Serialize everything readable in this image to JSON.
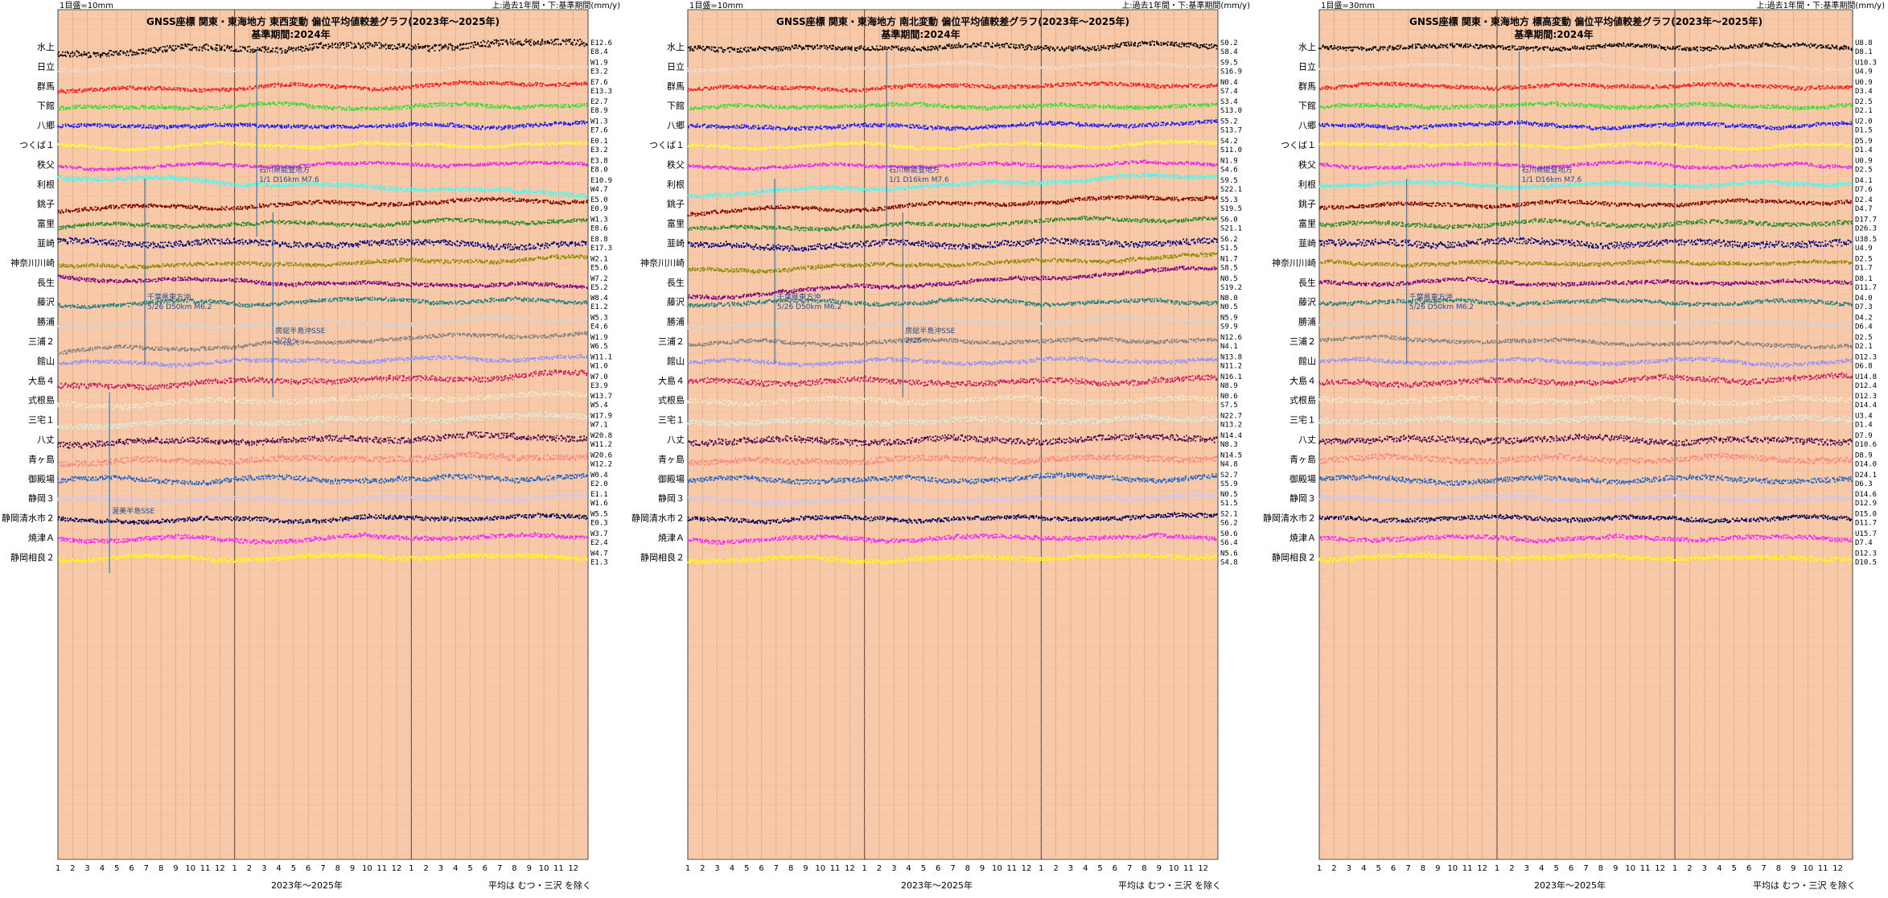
{
  "chart_data": [
    {
      "type": "scatter",
      "title": "GNSS座標 関東・東海地方 東西変動 偏位平均値較差グラフ(2023年～2025年)",
      "subtitle": "基準期間:2024年",
      "scale_label": "1目盛=10mm",
      "legend_note": "上:過去1年間・下:基準期間(mm/y)",
      "xlabel": "2023年～2025年",
      "footnote": "平均は むつ・三沢 を除く",
      "x_months": [
        "1",
        "2",
        "3",
        "4",
        "5",
        "6",
        "7",
        "8",
        "9",
        "10",
        "11",
        "12",
        "1",
        "2",
        "3",
        "4",
        "5",
        "6",
        "7",
        "8",
        "9",
        "10",
        "11",
        "12",
        "1",
        "2",
        "3",
        "4",
        "5",
        "6",
        "7",
        "8",
        "9",
        "10",
        "11",
        "12"
      ],
      "stations": [
        {
          "name": "水上",
          "color": "#000000",
          "top": "E12.6",
          "bottom": "E8.4",
          "trend": 0.35,
          "noise": 0.55
        },
        {
          "name": "日立",
          "color": "#ffe4e1",
          "top": "W1.9",
          "bottom": "E3.2",
          "trend": 0.1,
          "noise": 0.3
        },
        {
          "name": "群馬",
          "color": "#ff1a1a",
          "top": "E7.6",
          "bottom": "E13.3",
          "trend": 0.2,
          "noise": 0.3
        },
        {
          "name": "下館",
          "color": "#33dd33",
          "top": "E2.7",
          "bottom": "E8.9",
          "trend": 0.1,
          "noise": 0.3
        },
        {
          "name": "八郷",
          "color": "#1a1aff",
          "top": "W1.3",
          "bottom": "E7.6",
          "trend": 0.1,
          "noise": 0.3
        },
        {
          "name": "つくば１",
          "color": "#ffff33",
          "top": "E0.1",
          "bottom": "E3.2",
          "trend": 0.05,
          "noise": 0.25
        },
        {
          "name": "秩父",
          "color": "#ee22ee",
          "top": "E3.8",
          "bottom": "E8.0",
          "trend": 0.1,
          "noise": 0.25
        },
        {
          "name": "利根",
          "color": "#33ffff",
          "top": "E10.9",
          "bottom": "W4.7",
          "trend": -0.5,
          "noise": 0.35
        },
        {
          "name": "銚子",
          "color": "#800000",
          "top": "E5.0",
          "bottom": "E0.9",
          "trend": 0.3,
          "noise": 0.3
        },
        {
          "name": "富里",
          "color": "#228b22",
          "top": "W1.3",
          "bottom": "E8.6",
          "trend": 0.2,
          "noise": 0.3
        },
        {
          "name": "韮崎",
          "color": "#000080",
          "top": "E8.8",
          "bottom": "E17.3",
          "trend": -0.1,
          "noise": 0.5
        },
        {
          "name": "神奈川川崎",
          "color": "#8b8b00",
          "top": "W2.1",
          "bottom": "E5.6",
          "trend": 0.25,
          "noise": 0.3
        },
        {
          "name": "長生",
          "color": "#800080",
          "top": "W7.2",
          "bottom": "E5.2",
          "trend": -0.3,
          "noise": 0.3
        },
        {
          "name": "藤沢",
          "color": "#1a8080",
          "top": "W8.4",
          "bottom": "E1.2",
          "trend": 0.1,
          "noise": 0.3
        },
        {
          "name": "勝浦",
          "color": "#d3d3d3",
          "top": "W5.3",
          "bottom": "E4.6",
          "trend": 0.2,
          "noise": 0.3
        },
        {
          "name": "三浦２",
          "color": "#808080",
          "top": "W1.9",
          "bottom": "W6.5",
          "trend": 0.6,
          "noise": 0.3
        },
        {
          "name": "館山",
          "color": "#9090ff",
          "top": "W11.1",
          "bottom": "W1.0",
          "trend": 0.2,
          "noise": 0.3
        },
        {
          "name": "大島４",
          "color": "#cc1a60",
          "top": "W7.0",
          "bottom": "E3.9",
          "trend": 0.4,
          "noise": 0.45
        },
        {
          "name": "式根島",
          "color": "#fff8dc",
          "top": "W13.7",
          "bottom": "W5.4",
          "trend": 0.3,
          "noise": 0.45
        },
        {
          "name": "三宅１",
          "color": "#e0ffff",
          "top": "W17.9",
          "bottom": "W7.1",
          "trend": 0.3,
          "noise": 0.45
        },
        {
          "name": "八丈",
          "color": "#4b0050",
          "top": "W20.8",
          "bottom": "W11.2",
          "trend": 0.2,
          "noise": 0.5
        },
        {
          "name": "青ヶ島",
          "color": "#ff8080",
          "top": "W20.6",
          "bottom": "W12.2",
          "trend": 0.2,
          "noise": 0.5
        },
        {
          "name": "御殿場",
          "color": "#1e64c8",
          "top": "W0.4",
          "bottom": "E2.0",
          "trend": 0.1,
          "noise": 0.4
        },
        {
          "name": "静岡３",
          "color": "#c8c8ff",
          "top": "E1.1",
          "bottom": "W1.6",
          "trend": 0.1,
          "noise": 0.35
        },
        {
          "name": "静岡清水市２",
          "color": "#000060",
          "top": "W5.5",
          "bottom": "E0.3",
          "trend": 0.1,
          "noise": 0.35
        },
        {
          "name": "焼津Ａ",
          "color": "#ff22ff",
          "top": "W3.7",
          "bottom": "E2.4",
          "trend": 0.1,
          "noise": 0.35
        },
        {
          "name": "静岡相良２",
          "color": "#ffff00",
          "top": "W4.7",
          "bottom": "E1.3",
          "trend": 0.05,
          "noise": 0.35
        }
      ],
      "annotations": [
        {
          "text": "石川県能登地方",
          "x_month": 13.5
        },
        {
          "text": "1/1 D16km M7.6",
          "x_month": 13.5
        },
        {
          "text": "千葉県東方沖",
          "x_month": 5.9
        },
        {
          "text": "5/26 D50km M6.2",
          "x_month": 5.9
        },
        {
          "text": "房総半島沖SSE",
          "x_month": 14.6
        },
        {
          "text": "2/26～",
          "x_month": 14.6
        },
        {
          "text": "渥美半島SSE",
          "x_month": 3.5
        }
      ],
      "grid": true
    },
    {
      "type": "scatter",
      "title": "GNSS座標 関東・東海地方 南北変動 偏位平均値較差グラフ(2023年～2025年)",
      "subtitle": "基準期間:2024年",
      "scale_label": "1目盛=10mm",
      "legend_note": "上:過去1年間・下:基準期間(mm/y)",
      "xlabel": "2023年～2025年",
      "footnote": "平均は むつ・三沢 を除く",
      "x_months": [
        "1",
        "2",
        "3",
        "4",
        "5",
        "6",
        "7",
        "8",
        "9",
        "10",
        "11",
        "12",
        "1",
        "2",
        "3",
        "4",
        "5",
        "6",
        "7",
        "8",
        "9",
        "10",
        "11",
        "12",
        "1",
        "2",
        "3",
        "4",
        "5",
        "6",
        "7",
        "8",
        "9",
        "10",
        "11",
        "12"
      ],
      "stations": [
        {
          "name": "水上",
          "color": "#000000",
          "top": "S0.2",
          "bottom": "S8.4",
          "trend": 0.1,
          "noise": 0.4
        },
        {
          "name": "日立",
          "color": "#ffe4e1",
          "top": "S9.5",
          "bottom": "S16.9",
          "trend": 0.1,
          "noise": 0.3
        },
        {
          "name": "群馬",
          "color": "#ff1a1a",
          "top": "N0.4",
          "bottom": "S7.4",
          "trend": 0.1,
          "noise": 0.3
        },
        {
          "name": "下館",
          "color": "#33dd33",
          "top": "S3.4",
          "bottom": "S13.0",
          "trend": 0.1,
          "noise": 0.3
        },
        {
          "name": "八郷",
          "color": "#1a1aff",
          "top": "S5.2",
          "bottom": "S13.7",
          "trend": 0.1,
          "noise": 0.3
        },
        {
          "name": "つくば１",
          "color": "#ffff33",
          "top": "S4.2",
          "bottom": "S11.0",
          "trend": 0.1,
          "noise": 0.25
        },
        {
          "name": "秩父",
          "color": "#ee22ee",
          "top": "N1.9",
          "bottom": "S4.6",
          "trend": 0.1,
          "noise": 0.25
        },
        {
          "name": "利根",
          "color": "#33ffff",
          "top": "S9.5",
          "bottom": "S22.1",
          "trend": 0.6,
          "noise": 0.3
        },
        {
          "name": "銚子",
          "color": "#800000",
          "top": "S5.3",
          "bottom": "S19.5",
          "trend": 0.5,
          "noise": 0.3
        },
        {
          "name": "富里",
          "color": "#228b22",
          "top": "S6.0",
          "bottom": "S21.1",
          "trend": 0.3,
          "noise": 0.3
        },
        {
          "name": "韮崎",
          "color": "#000080",
          "top": "S6.2",
          "bottom": "S1.5",
          "trend": 0.1,
          "noise": 0.5
        },
        {
          "name": "神奈川川崎",
          "color": "#8b8b00",
          "top": "N1.7",
          "bottom": "S8.5",
          "trend": 0.5,
          "noise": 0.3
        },
        {
          "name": "長生",
          "color": "#800080",
          "top": "N0.5",
          "bottom": "S19.2",
          "trend": 0.9,
          "noise": 0.3
        },
        {
          "name": "藤沢",
          "color": "#1a8080",
          "top": "N8.0",
          "bottom": "N0.5",
          "trend": 0.1,
          "noise": 0.3
        },
        {
          "name": "勝浦",
          "color": "#d3d3d3",
          "top": "N5.9",
          "bottom": "S9.9",
          "trend": 0.2,
          "noise": 0.3
        },
        {
          "name": "三浦２",
          "color": "#808080",
          "top": "N12.6",
          "bottom": "N4.1",
          "trend": 0.1,
          "noise": 0.3
        },
        {
          "name": "館山",
          "color": "#9090ff",
          "top": "N13.8",
          "bottom": "N11.2",
          "trend": 0.1,
          "noise": 0.3
        },
        {
          "name": "大島４",
          "color": "#cc1a60",
          "top": "N16.1",
          "bottom": "N8.9",
          "trend": 0.1,
          "noise": 0.45
        },
        {
          "name": "式根島",
          "color": "#fff8dc",
          "top": "N0.6",
          "bottom": "S7.5",
          "trend": 0.1,
          "noise": 0.45
        },
        {
          "name": "三宅１",
          "color": "#e0ffff",
          "top": "N22.7",
          "bottom": "N13.2",
          "trend": 0.1,
          "noise": 0.45
        },
        {
          "name": "八丈",
          "color": "#4b0050",
          "top": "N14.4",
          "bottom": "N8.3",
          "trend": 0.1,
          "noise": 0.5
        },
        {
          "name": "青ヶ島",
          "color": "#ff8080",
          "top": "N14.5",
          "bottom": "N4.8",
          "trend": 0.1,
          "noise": 0.5
        },
        {
          "name": "御殿場",
          "color": "#1e64c8",
          "top": "S2.7",
          "bottom": "S5.9",
          "trend": 0.1,
          "noise": 0.4
        },
        {
          "name": "静岡３",
          "color": "#c8c8ff",
          "top": "N0.5",
          "bottom": "S1.5",
          "trend": 0.1,
          "noise": 0.35
        },
        {
          "name": "静岡清水市２",
          "color": "#000060",
          "top": "S2.1",
          "bottom": "S6.2",
          "trend": 0.1,
          "noise": 0.35
        },
        {
          "name": "焼津Ａ",
          "color": "#ff22ff",
          "top": "S0.6",
          "bottom": "S6.4",
          "trend": 0.1,
          "noise": 0.35
        },
        {
          "name": "静岡相良２",
          "color": "#ffff00",
          "top": "N5.6",
          "bottom": "S4.8",
          "trend": 0.1,
          "noise": 0.35
        }
      ],
      "annotations": [
        {
          "text": "石川県能登地方",
          "x_month": 13.5
        },
        {
          "text": "1/1 D16km M7.6",
          "x_month": 13.5
        },
        {
          "text": "千葉県東方沖",
          "x_month": 5.9
        },
        {
          "text": "5/26 D50km M6.2",
          "x_month": 5.9
        },
        {
          "text": "房総半島沖SSE",
          "x_month": 14.6
        },
        {
          "text": "2/26～",
          "x_month": 14.6
        }
      ],
      "grid": true
    },
    {
      "type": "scatter",
      "title": "GNSS座標 関東・東海地方 標高変動 偏位平均値較差グラフ(2023年～2025年)",
      "subtitle": "基準期間:2024年",
      "scale_label": "1目盛=30mm",
      "legend_note": "上:過去1年間・下:基準期間(mm/y)",
      "xlabel": "2023年～2025年",
      "footnote": "平均は むつ・三沢 を除く",
      "x_months": [
        "1",
        "2",
        "3",
        "4",
        "5",
        "6",
        "7",
        "8",
        "9",
        "10",
        "11",
        "12",
        "1",
        "2",
        "3",
        "4",
        "5",
        "6",
        "7",
        "8",
        "9",
        "10",
        "11",
        "12",
        "1",
        "2",
        "3",
        "4",
        "5",
        "6",
        "7",
        "8",
        "9",
        "10",
        "11",
        "12"
      ],
      "stations": [
        {
          "name": "水上",
          "color": "#000000",
          "top": "U8.8",
          "bottom": "D8.1",
          "trend": 0.0,
          "noise": 0.35
        },
        {
          "name": "日立",
          "color": "#ffe4e1",
          "top": "U10.3",
          "bottom": "U4.9",
          "trend": 0.0,
          "noise": 0.3
        },
        {
          "name": "群馬",
          "color": "#ff1a1a",
          "top": "U0.9",
          "bottom": "D3.4",
          "trend": 0.0,
          "noise": 0.3
        },
        {
          "name": "下館",
          "color": "#33dd33",
          "top": "D2.5",
          "bottom": "D2.1",
          "trend": 0.0,
          "noise": 0.3
        },
        {
          "name": "八郷",
          "color": "#1a1aff",
          "top": "U2.0",
          "bottom": "D1.5",
          "trend": 0.0,
          "noise": 0.3
        },
        {
          "name": "つくば１",
          "color": "#ffff33",
          "top": "D5.9",
          "bottom": "D1.4",
          "trend": 0.0,
          "noise": 0.25
        },
        {
          "name": "秩父",
          "color": "#ee22ee",
          "top": "U0.9",
          "bottom": "D2.5",
          "trend": 0.0,
          "noise": 0.25
        },
        {
          "name": "利根",
          "color": "#33ffff",
          "top": "D4.1",
          "bottom": "D7.6",
          "trend": 0.0,
          "noise": 0.3
        },
        {
          "name": "銚子",
          "color": "#800000",
          "top": "D2.4",
          "bottom": "D4.7",
          "trend": 0.1,
          "noise": 0.3
        },
        {
          "name": "富里",
          "color": "#228b22",
          "top": "D17.7",
          "bottom": "D26.3",
          "trend": 0.0,
          "noise": 0.35
        },
        {
          "name": "韮崎",
          "color": "#000080",
          "top": "U38.5",
          "bottom": "U4.9",
          "trend": 0.0,
          "noise": 0.55
        },
        {
          "name": "神奈川川崎",
          "color": "#8b8b00",
          "top": "D2.5",
          "bottom": "D1.7",
          "trend": 0.0,
          "noise": 0.3
        },
        {
          "name": "長生",
          "color": "#800080",
          "top": "D8.1",
          "bottom": "D11.7",
          "trend": 0.0,
          "noise": 0.3
        },
        {
          "name": "藤沢",
          "color": "#1a8080",
          "top": "D4.0",
          "bottom": "D7.3",
          "trend": 0.0,
          "noise": 0.3
        },
        {
          "name": "勝浦",
          "color": "#d3d3d3",
          "top": "D4.2",
          "bottom": "D6.4",
          "trend": 0.0,
          "noise": 0.3
        },
        {
          "name": "三浦２",
          "color": "#808080",
          "top": "D2.5",
          "bottom": "D2.1",
          "trend": -0.2,
          "noise": 0.3
        },
        {
          "name": "館山",
          "color": "#9090ff",
          "top": "D12.3",
          "bottom": "D6.8",
          "trend": 0.0,
          "noise": 0.3
        },
        {
          "name": "大島４",
          "color": "#cc1a60",
          "top": "U14.8",
          "bottom": "D12.4",
          "trend": 0.2,
          "noise": 0.45
        },
        {
          "name": "式根島",
          "color": "#fff8dc",
          "top": "D12.3",
          "bottom": "D14.4",
          "trend": 0.0,
          "noise": 0.45
        },
        {
          "name": "三宅１",
          "color": "#e0ffff",
          "top": "U3.4",
          "bottom": "D1.4",
          "trend": 0.0,
          "noise": 0.45
        },
        {
          "name": "八丈",
          "color": "#4b0050",
          "top": "D7.9",
          "bottom": "D10.6",
          "trend": 0.0,
          "noise": 0.5
        },
        {
          "name": "青ヶ島",
          "color": "#ff8080",
          "top": "D8.9",
          "bottom": "D14.0",
          "trend": 0.0,
          "noise": 0.5
        },
        {
          "name": "御殿場",
          "color": "#1e64c8",
          "top": "D24.1",
          "bottom": "D6.3",
          "trend": 0.0,
          "noise": 0.4
        },
        {
          "name": "静岡３",
          "color": "#c8c8ff",
          "top": "D14.6",
          "bottom": "D12.9",
          "trend": 0.0,
          "noise": 0.35
        },
        {
          "name": "静岡清水市２",
          "color": "#000060",
          "top": "D15.0",
          "bottom": "D11.7",
          "trend": 0.0,
          "noise": 0.35
        },
        {
          "name": "焼津Ａ",
          "color": "#ff22ff",
          "top": "U15.7",
          "bottom": "D7.4",
          "trend": 0.0,
          "noise": 0.35
        },
        {
          "name": "静岡相良２",
          "color": "#ffff00",
          "top": "D12.3",
          "bottom": "D10.5",
          "trend": 0.0,
          "noise": 0.35
        }
      ],
      "annotations": [
        {
          "text": "石川県能登地方",
          "x_month": 13.5
        },
        {
          "text": "1/1 D16km M7.6",
          "x_month": 13.5
        },
        {
          "text": "千葉県東方沖",
          "x_month": 5.9
        },
        {
          "text": "5/26 D50km M6.2",
          "x_month": 5.9
        }
      ],
      "grid": true
    }
  ]
}
